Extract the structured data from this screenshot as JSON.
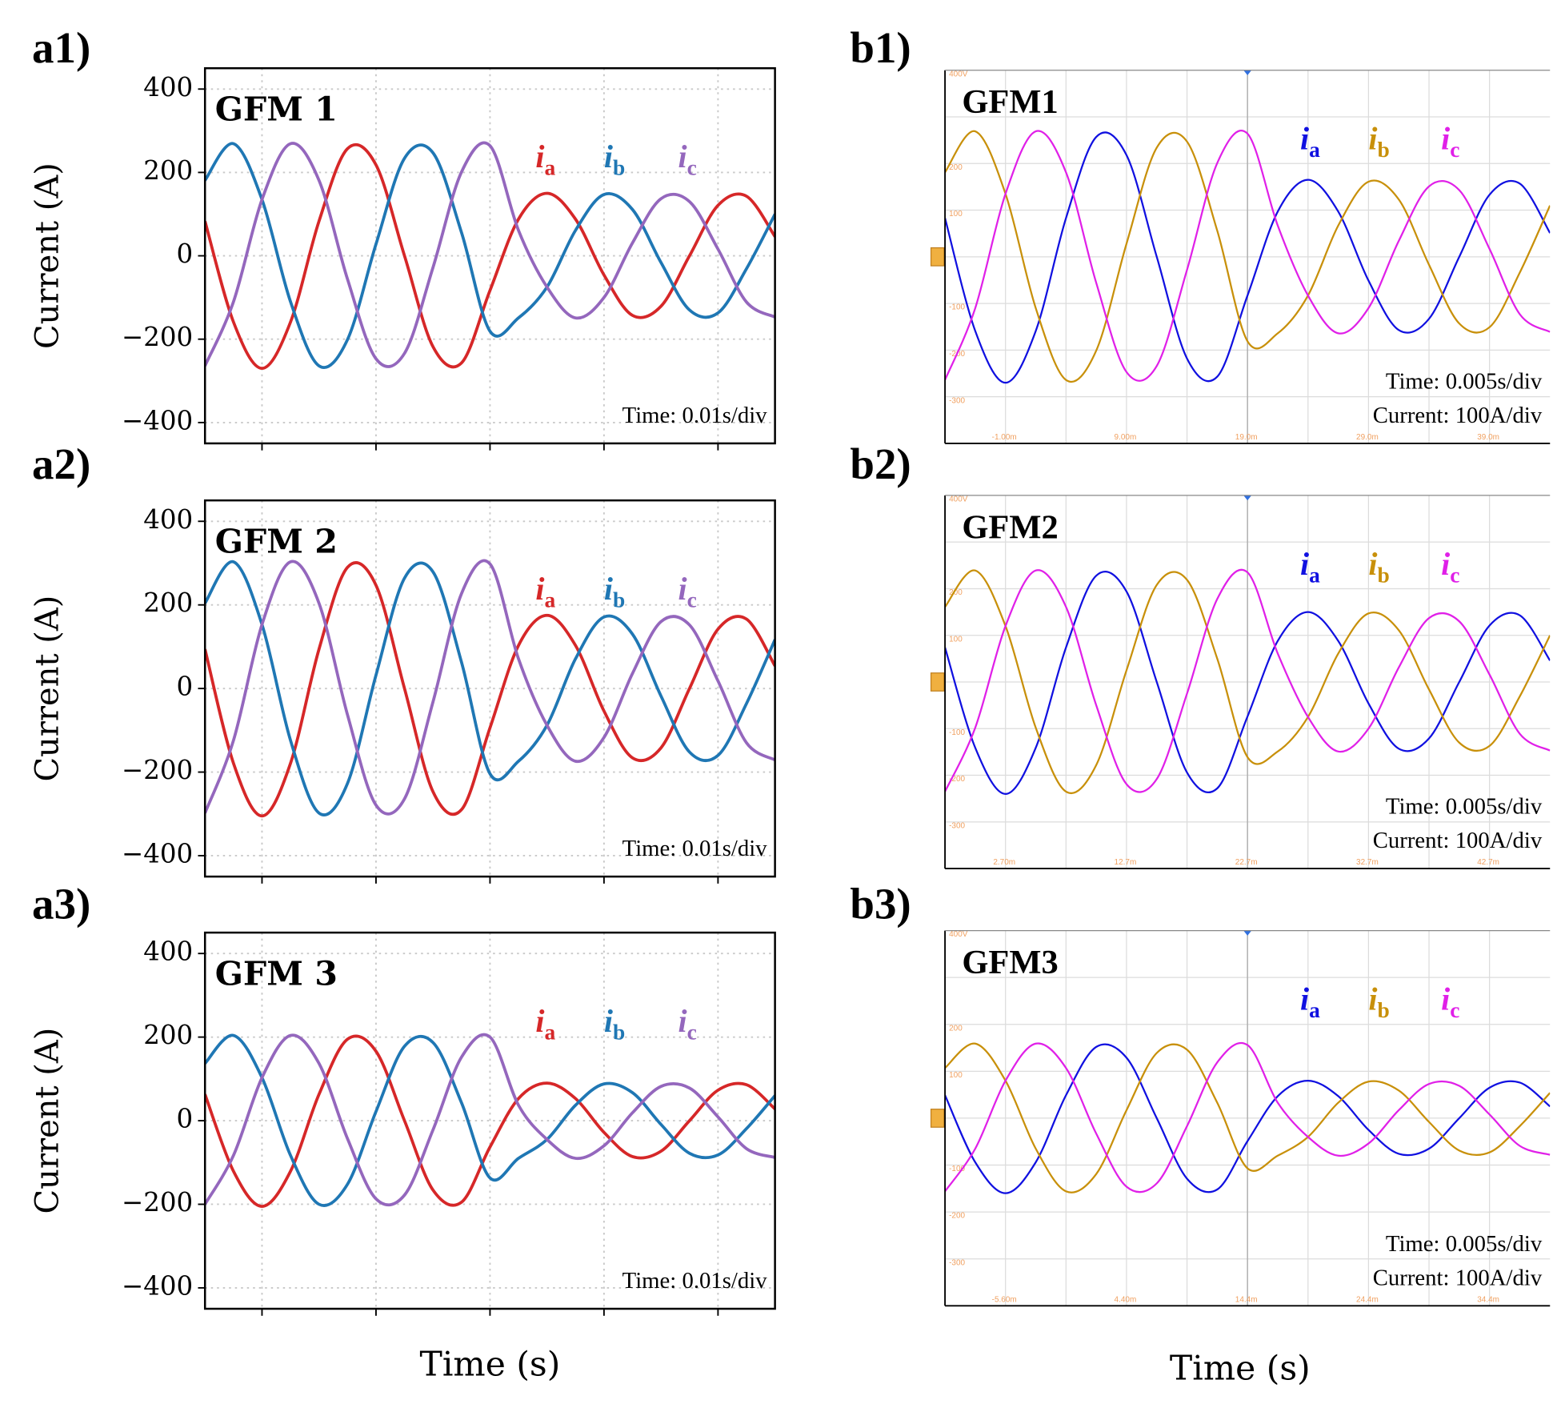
{
  "figure_xlabels": [
    "Time (s)",
    "Time (s)"
  ],
  "chart_data": [
    {
      "type": "line",
      "style": "plot",
      "panel": "a1)",
      "title": "GFM 1",
      "ylabel": "Current (A)",
      "annotation": [
        "Time: 0.01s/div"
      ],
      "x": [
        0,
        0.0025,
        0.005,
        0.0075,
        0.01,
        0.0125,
        0.015,
        0.0175,
        0.02,
        0.0225,
        0.025,
        0.0275,
        0.03,
        0.0325,
        0.035,
        0.0375,
        0.04,
        0.0425,
        0.045,
        0.0475,
        0.05
      ],
      "xlim": [
        0,
        0.05
      ],
      "xticks": [
        0.005,
        0.015,
        0.025,
        0.035,
        0.045
      ],
      "ylim": [
        -450,
        450
      ],
      "yticks": [
        {
          "value": -400,
          "label": "−400"
        },
        {
          "value": -200,
          "label": "−200"
        },
        0,
        200,
        400
      ],
      "grid": true,
      "series": [
        {
          "label": "i",
          "label_sub": "a",
          "color": "#d62728",
          "values": [
            83,
            -159,
            -270,
            -159,
            83,
            257,
            218,
            0,
            -218,
            -257,
            -83,
            88,
            150,
            88,
            -46,
            -143,
            -121,
            0,
            121,
            143,
            46
          ]
        },
        {
          "label": "i",
          "label_sub": "b",
          "color": "#1f77b4",
          "values": [
            181,
            269,
            135,
            -110,
            -264,
            -201,
            28,
            234,
            247,
            56,
            -181,
            -149,
            -75,
            61,
            147,
            111,
            -16,
            -130,
            -137,
            -31,
            100
          ]
        },
        {
          "label": "i",
          "label_sub": "c",
          "color": "#9467bd",
          "values": [
            -264,
            -110,
            135,
            269,
            181,
            -56,
            -247,
            -234,
            -28,
            201,
            264,
            61,
            -75,
            -149,
            -100,
            31,
            137,
            130,
            16,
            -111,
            -147
          ]
        }
      ]
    },
    {
      "type": "line",
      "style": "plot",
      "panel": "a2)",
      "title": "GFM 2",
      "ylabel": "Current (A)",
      "annotation": [
        "Time: 0.01s/div"
      ],
      "x": [
        0,
        0.0025,
        0.005,
        0.0075,
        0.01,
        0.0125,
        0.015,
        0.0175,
        0.02,
        0.0225,
        0.025,
        0.0275,
        0.03,
        0.0325,
        0.035,
        0.0375,
        0.04,
        0.0425,
        0.045,
        0.0475,
        0.05
      ],
      "xlim": [
        0,
        0.05
      ],
      "xticks": [
        0.005,
        0.015,
        0.025,
        0.035,
        0.045
      ],
      "ylim": [
        -450,
        450
      ],
      "yticks": [
        {
          "value": -400,
          "label": "−400"
        },
        {
          "value": -200,
          "label": "−200"
        },
        0,
        200,
        400
      ],
      "grid": true,
      "series": [
        {
          "label": "i",
          "label_sub": "a",
          "color": "#d62728",
          "values": [
            94,
            -179,
            -305,
            -179,
            94,
            290,
            247,
            0,
            -247,
            -290,
            -94,
            103,
            175,
            103,
            -54,
            -166,
            -142,
            0,
            142,
            166,
            54
          ]
        },
        {
          "label": "i",
          "label_sub": "b",
          "color": "#1f77b4",
          "values": [
            204,
            303,
            153,
            -124,
            -298,
            -227,
            32,
            264,
            279,
            63,
            -204,
            -174,
            -88,
            71,
            171,
            130,
            -18,
            -152,
            -160,
            -36,
            117
          ]
        },
        {
          "label": "i",
          "label_sub": "c",
          "color": "#9467bd",
          "values": [
            -298,
            -124,
            153,
            303,
            204,
            -63,
            -279,
            -264,
            -32,
            227,
            298,
            71,
            -88,
            -174,
            -117,
            36,
            160,
            152,
            18,
            -130,
            -171
          ]
        }
      ]
    },
    {
      "type": "line",
      "style": "plot",
      "panel": "a3)",
      "title": "GFM 3",
      "ylabel": "Current (A)",
      "annotation": [
        "Time: 0.01s/div"
      ],
      "x": [
        0,
        0.0025,
        0.005,
        0.0075,
        0.01,
        0.0125,
        0.015,
        0.0175,
        0.02,
        0.0225,
        0.025,
        0.0275,
        0.03,
        0.0325,
        0.035,
        0.0375,
        0.04,
        0.0425,
        0.045,
        0.0475,
        0.05
      ],
      "xlim": [
        0,
        0.05
      ],
      "xticks": [
        0.005,
        0.015,
        0.025,
        0.035,
        0.045
      ],
      "ylim": [
        -450,
        450
      ],
      "yticks": [
        {
          "value": -400,
          "label": "−400"
        },
        {
          "value": -200,
          "label": "−200"
        },
        0,
        200,
        400
      ],
      "grid": true,
      "series": [
        {
          "label": "i",
          "label_sub": "a",
          "color": "#d62728",
          "values": [
            63,
            -121,
            -205,
            -121,
            63,
            195,
            166,
            0,
            -166,
            -195,
            -63,
            53,
            90,
            53,
            -28,
            -86,
            -73,
            0,
            73,
            86,
            28
          ]
        },
        {
          "label": "i",
          "label_sub": "b",
          "color": "#1f77b4",
          "values": [
            137,
            204,
            103,
            -83,
            -200,
            -152,
            22,
            178,
            187,
            43,
            -137,
            -90,
            -45,
            37,
            88,
            67,
            -9,
            -78,
            -82,
            -19,
            60
          ]
        },
        {
          "label": "i",
          "label_sub": "c",
          "color": "#9467bd",
          "values": [
            -200,
            -83,
            103,
            204,
            137,
            -43,
            -187,
            -178,
            -22,
            152,
            200,
            37,
            -45,
            -90,
            -60,
            19,
            82,
            78,
            9,
            -67,
            -88
          ]
        }
      ]
    },
    {
      "type": "line",
      "style": "scope",
      "panel": "b1)",
      "title": "GFM1",
      "annotation": [
        "Time: 0.005s/div",
        "Current: 100A/div"
      ],
      "x": [
        -5.9,
        -3.4,
        -0.9,
        1.6,
        4.1,
        6.6,
        9.1,
        11.6,
        14.1,
        16.6,
        19.1,
        21.6,
        24.1,
        26.6,
        29.1,
        31.6,
        34.1,
        36.6,
        39.1,
        41.6,
        44.1
      ],
      "xlim": [
        -5.9,
        44.1
      ],
      "xticks": [
        {
          "value": -1,
          "label": "-1.00m"
        },
        {
          "value": 9,
          "label": "9.00m"
        },
        {
          "value": 19,
          "label": "19.0m"
        },
        {
          "value": 29,
          "label": "29.0m"
        },
        {
          "value": 39,
          "label": "39.0m"
        }
      ],
      "ylim": [
        -400,
        400
      ],
      "yticks": [
        {
          "value": 400,
          "label": "400V"
        },
        200,
        100,
        -100,
        -200,
        -300
      ],
      "grid": true,
      "series": [
        {
          "label": "i",
          "label_sub": "a",
          "color": "#1010e0",
          "values": [
            83,
            -159,
            -270,
            -159,
            83,
            257,
            218,
            0,
            -218,
            -257,
            -83,
            97,
            165,
            97,
            -51,
            -157,
            -133,
            0,
            133,
            157,
            51
          ]
        },
        {
          "label": "i",
          "label_sub": "b",
          "color": "#c8900a",
          "values": [
            181,
            269,
            135,
            -110,
            -264,
            -201,
            28,
            234,
            247,
            56,
            -181,
            -164,
            -83,
            67,
            161,
            123,
            -17,
            -143,
            -151,
            -34,
            110
          ]
        },
        {
          "label": "i",
          "label_sub": "c",
          "color": "#e020e8",
          "values": [
            -264,
            -110,
            135,
            269,
            181,
            -56,
            -247,
            -234,
            -28,
            201,
            264,
            67,
            -83,
            -164,
            -110,
            34,
            151,
            143,
            17,
            -123,
            -161
          ]
        }
      ]
    },
    {
      "type": "line",
      "style": "scope",
      "panel": "b2)",
      "title": "GFM2",
      "annotation": [
        "Time: 0.005s/div",
        "Current: 100A/div"
      ],
      "x": [
        -2.2,
        0.3,
        2.8,
        5.3,
        7.8,
        10.3,
        12.8,
        15.3,
        17.8,
        20.3,
        22.8,
        25.3,
        27.8,
        30.3,
        32.8,
        35.3,
        37.8,
        40.3,
        42.8,
        45.3,
        47.8
      ],
      "xlim": [
        -2.2,
        47.8
      ],
      "xticks": [
        {
          "value": 2.7,
          "label": "2.70m"
        },
        {
          "value": 12.7,
          "label": "12.7m"
        },
        {
          "value": 22.7,
          "label": "22.7m"
        },
        {
          "value": 32.7,
          "label": "32.7m"
        },
        {
          "value": 42.7,
          "label": "42.7m"
        }
      ],
      "ylim": [
        -400,
        400
      ],
      "yticks": [
        {
          "value": 400,
          "label": "400V"
        },
        200,
        100,
        -100,
        -200,
        -300
      ],
      "grid": true,
      "series": [
        {
          "label": "i",
          "label_sub": "a",
          "color": "#1010e0",
          "values": [
            74,
            -141,
            -240,
            -141,
            74,
            228,
            194,
            0,
            -194,
            -228,
            -74,
            88,
            150,
            88,
            -46,
            -143,
            -121,
            0,
            121,
            143,
            46
          ]
        },
        {
          "label": "i",
          "label_sub": "b",
          "color": "#c8900a",
          "values": [
            161,
            239,
            120,
            -98,
            -235,
            -178,
            25,
            208,
            219,
            50,
            -161,
            -149,
            -75,
            61,
            147,
            111,
            -16,
            -130,
            -137,
            -31,
            100
          ]
        },
        {
          "label": "i",
          "label_sub": "c",
          "color": "#e020e8",
          "values": [
            -235,
            -98,
            120,
            239,
            161,
            -50,
            -219,
            -208,
            -25,
            178,
            235,
            61,
            -75,
            -149,
            -100,
            31,
            137,
            130,
            16,
            -111,
            -147
          ]
        }
      ]
    },
    {
      "type": "line",
      "style": "scope",
      "panel": "b3)",
      "title": "GFM3",
      "annotation": [
        "Time: 0.005s/div",
        "Current: 100A/div"
      ],
      "x": [
        -10.5,
        -8,
        -5.5,
        -3,
        -0.5,
        2,
        4.5,
        7,
        9.5,
        12,
        14.5,
        17,
        19.5,
        22,
        24.5,
        27,
        29.5,
        32,
        34.5,
        37,
        39.5
      ],
      "xlim": [
        -10.5,
        39.5
      ],
      "xticks": [
        {
          "value": -5.6,
          "label": "-5.60m"
        },
        {
          "value": 4.4,
          "label": "4.40m"
        },
        {
          "value": 14.4,
          "label": "14.4m"
        },
        {
          "value": 24.4,
          "label": "24.4m"
        },
        {
          "value": 34.4,
          "label": "34.4m"
        }
      ],
      "ylim": [
        -400,
        400
      ],
      "yticks": [
        {
          "value": 400,
          "label": "400V"
        },
        200,
        100,
        -100,
        -200,
        -300
      ],
      "grid": true,
      "series": [
        {
          "label": "i",
          "label_sub": "a",
          "color": "#1010e0",
          "values": [
            49,
            -94,
            -160,
            -94,
            49,
            152,
            129,
            0,
            -129,
            -152,
            -49,
            47,
            80,
            47,
            -25,
            -76,
            -65,
            0,
            65,
            76,
            25
          ]
        },
        {
          "label": "i",
          "label_sub": "b",
          "color": "#c8900a",
          "values": [
            107,
            159,
            80,
            -65,
            -156,
            -119,
            17,
            139,
            146,
            33,
            -107,
            -80,
            -40,
            33,
            78,
            59,
            -8,
            -69,
            -73,
            -17,
            54
          ]
        },
        {
          "label": "i",
          "label_sub": "c",
          "color": "#e020e8",
          "values": [
            -156,
            -65,
            80,
            159,
            107,
            -33,
            -146,
            -139,
            -17,
            119,
            156,
            33,
            -40,
            -80,
            -54,
            17,
            73,
            69,
            8,
            -59,
            -78
          ]
        }
      ]
    }
  ]
}
